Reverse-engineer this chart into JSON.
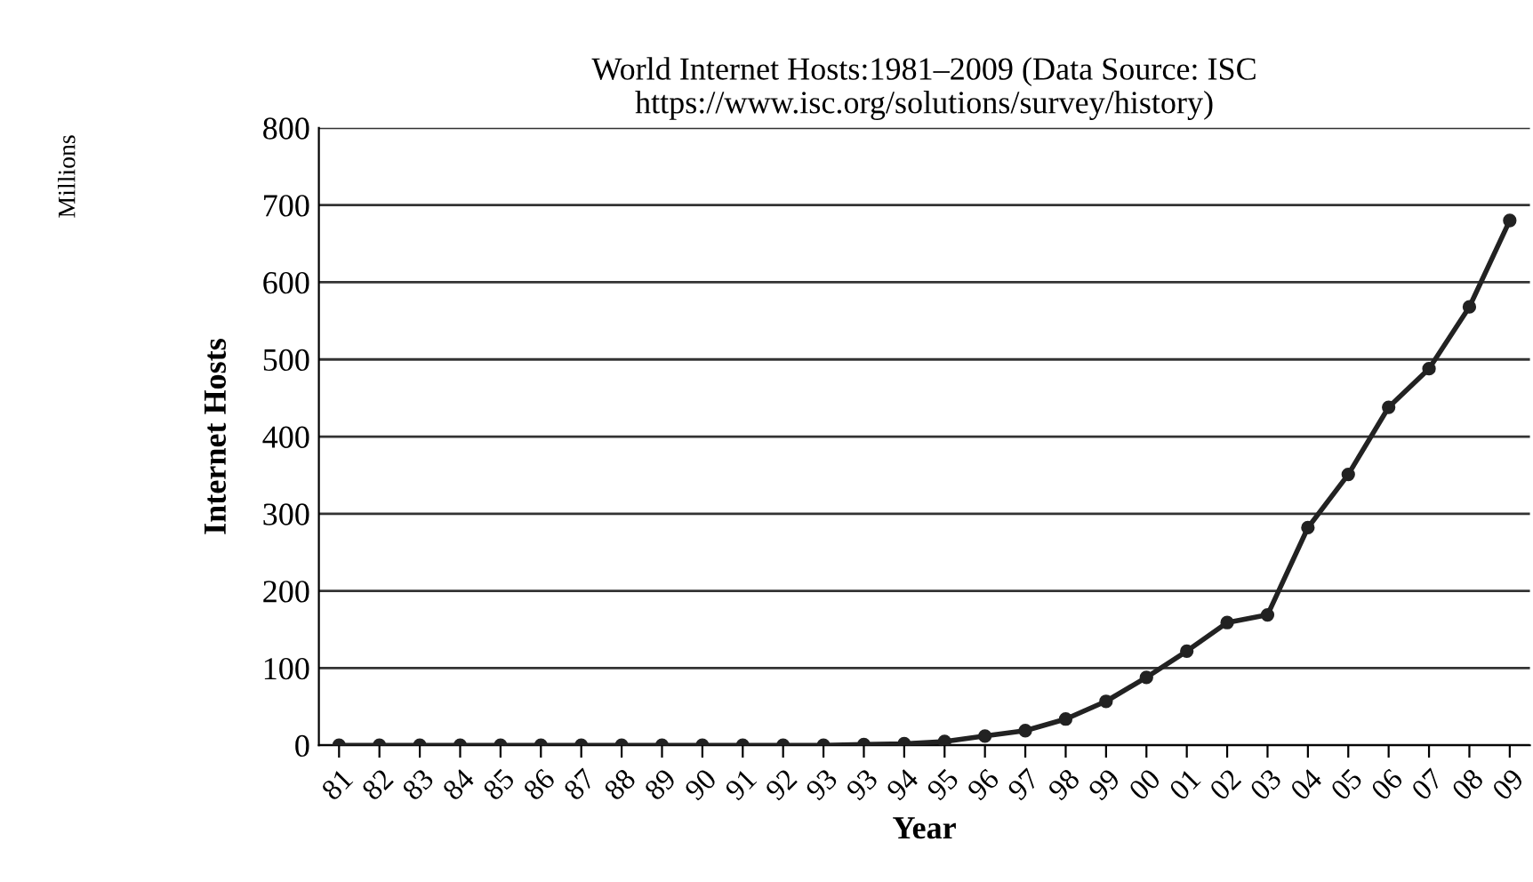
{
  "chart_data": {
    "type": "line",
    "title": "World Internet Hosts:1981–2009 (Data Source: ISC\nhttps://www.isc.org/solutions/survey/history)",
    "xlabel": "Year",
    "ylabel": "Internet Hosts",
    "annotations": [
      "Millions"
    ],
    "categories": [
      "81",
      "82",
      "83",
      "84",
      "85",
      "86",
      "87",
      "88",
      "89",
      "90",
      "91",
      "92",
      "93",
      "93",
      "94",
      "95",
      "96",
      "97",
      "98",
      "99",
      "00",
      "01",
      "02",
      "03",
      "04",
      "05",
      "06",
      "07",
      "08",
      "09"
    ],
    "series": [
      {
        "color": "#222222",
        "values": [
          0,
          0,
          0,
          0,
          0,
          0,
          0,
          0,
          0,
          0,
          0,
          0,
          0,
          1,
          2,
          5,
          12,
          19,
          34,
          57,
          88,
          122,
          159,
          169,
          282,
          351,
          438,
          488,
          568,
          680
        ]
      }
    ],
    "ylim": [
      0,
      800
    ],
    "yticks": [
      0,
      100,
      200,
      300,
      400,
      500,
      600,
      700,
      800
    ],
    "grid": "y",
    "marker": "circle",
    "line_style": "solid"
  }
}
